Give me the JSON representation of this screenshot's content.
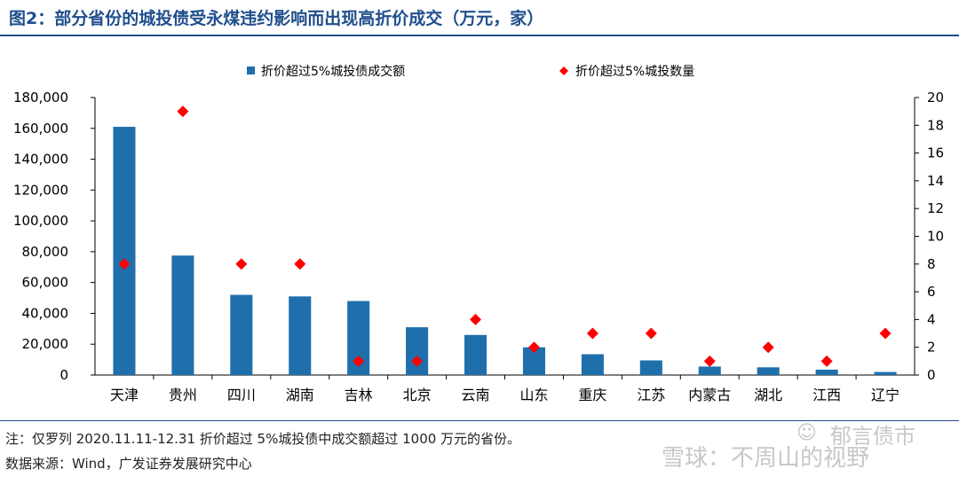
{
  "figure": {
    "title": "图2：部分省份的城投债受永煤违约影响而出现高折价成交（万元，家）",
    "note": "注：仅罗列 2020.11.11-12.31 折价超过 5%城投债中成交额超过 1000 万元的省份。",
    "source": "数据来源：Wind，广发证券发展研究中心",
    "watermark_top": "郁言债市",
    "watermark_bottom": "雪球：不周山的视野"
  },
  "colors": {
    "bar": "#1f6fad",
    "marker": "#ff0000",
    "title": "#1f4e8c"
  },
  "chart_data": {
    "type": "bar",
    "categories": [
      "天津",
      "贵州",
      "四川",
      "湖南",
      "吉林",
      "北京",
      "云南",
      "山东",
      "重庆",
      "江苏",
      "内蒙古",
      "湖北",
      "江西",
      "辽宁"
    ],
    "series": [
      {
        "name": "折价超过5%城投债成交额",
        "type": "bar",
        "axis": "left",
        "values": [
          161000,
          77500,
          52000,
          51000,
          48000,
          31000,
          26000,
          18000,
          13500,
          9500,
          5500,
          5000,
          3500,
          2000
        ]
      },
      {
        "name": "折价超过5%城投数量",
        "type": "scatter",
        "marker": "diamond",
        "axis": "right",
        "values": [
          8,
          19,
          8,
          8,
          1,
          1,
          4,
          2,
          3,
          3,
          1,
          2,
          1,
          3
        ]
      }
    ],
    "ylim": [
      0,
      180000
    ],
    "yticks": [
      "0",
      "20,000",
      "40,000",
      "60,000",
      "80,000",
      "100,000",
      "120,000",
      "140,000",
      "160,000",
      "180,000"
    ],
    "y2lim": [
      0,
      20
    ],
    "y2ticks": [
      "0",
      "2",
      "4",
      "6",
      "8",
      "10",
      "12",
      "14",
      "16",
      "18",
      "20"
    ],
    "legend_position": "top",
    "grid": false
  }
}
